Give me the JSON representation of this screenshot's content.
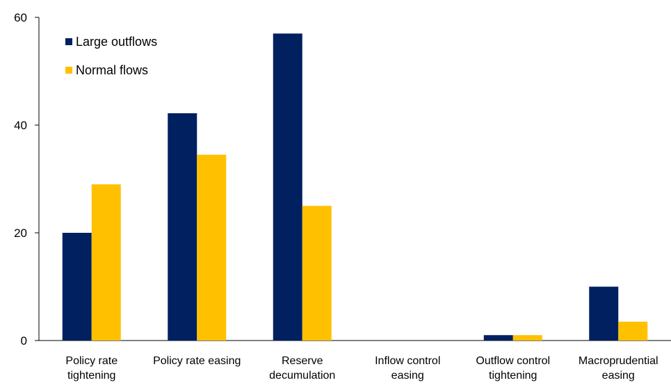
{
  "chart_data": {
    "type": "bar",
    "categories": [
      [
        "Policy rate",
        "tightening"
      ],
      [
        "Policy rate easing"
      ],
      [
        "Reserve",
        "decumulation"
      ],
      [
        "Inflow control",
        "easing"
      ],
      [
        "Outflow control",
        "tightening"
      ],
      [
        "Macroprudential",
        "easing"
      ]
    ],
    "series": [
      {
        "name": "Large outflows",
        "color": "#002060",
        "values": [
          20,
          42.2,
          57,
          0,
          1,
          10
        ]
      },
      {
        "name": "Normal flows",
        "color": "#FFC000",
        "values": [
          29,
          34.5,
          25,
          0,
          1,
          3.5
        ]
      }
    ],
    "ylim": [
      0,
      60
    ],
    "yticks": [
      0,
      20,
      40,
      60
    ],
    "grid": false,
    "legend_position": "top-left"
  }
}
